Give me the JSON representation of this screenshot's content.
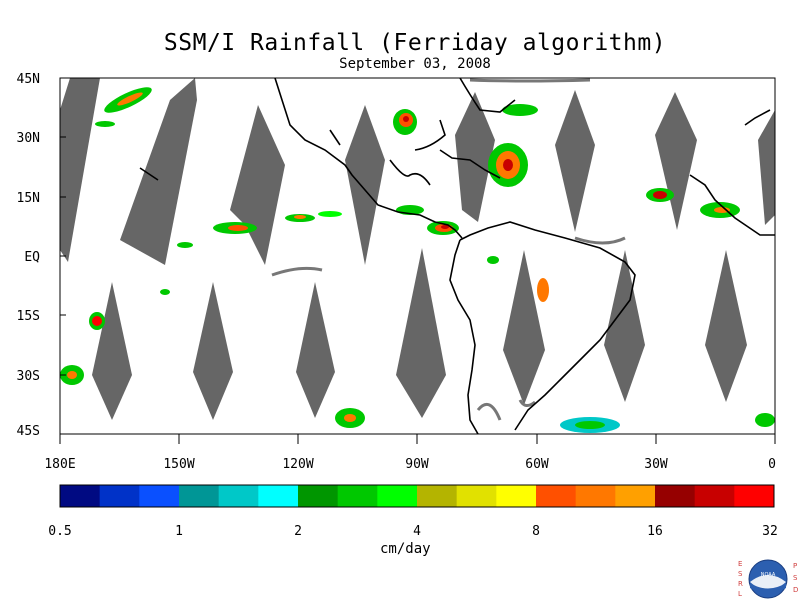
{
  "title": "SSM/I Rainfall (Ferriday algorithm)",
  "subtitle": "September 03, 2008",
  "map": {
    "lat_labels": [
      "45N",
      "30N",
      "15N",
      "EQ",
      "15S",
      "30S",
      "45S"
    ],
    "lat_values": [
      45,
      30,
      15,
      0,
      -15,
      -30,
      -45
    ],
    "lon_labels": [
      "180E",
      "150W",
      "120W",
      "90W",
      "60W",
      "30W",
      "0"
    ],
    "lon_values": [
      -180,
      -150,
      -120,
      -90,
      -60,
      -30,
      0
    ],
    "extent": {
      "lon": [
        -180,
        0
      ],
      "lat": [
        -45,
        45
      ]
    },
    "no_data_color": "#666666",
    "coast_color": "#000000"
  },
  "colorbar": {
    "units": "cm/day",
    "tick_labels": [
      "0.5",
      "1",
      "2",
      "4",
      "8",
      "16",
      "32"
    ],
    "colors": [
      "#000a82",
      "#0032c8",
      "#0a50ff",
      "#009696",
      "#00c8c8",
      "#00ffff",
      "#009600",
      "#00c800",
      "#00ff00",
      "#b4b400",
      "#e1e100",
      "#ffff00",
      "#ff5000",
      "#ff7800",
      "#ffa000",
      "#960000",
      "#c80000",
      "#ff0000"
    ]
  },
  "logo": {
    "left_letters": [
      "E",
      "S",
      "R",
      "L"
    ],
    "right_letters": [
      "P",
      "S",
      "D"
    ],
    "center_text": "NOAA"
  }
}
